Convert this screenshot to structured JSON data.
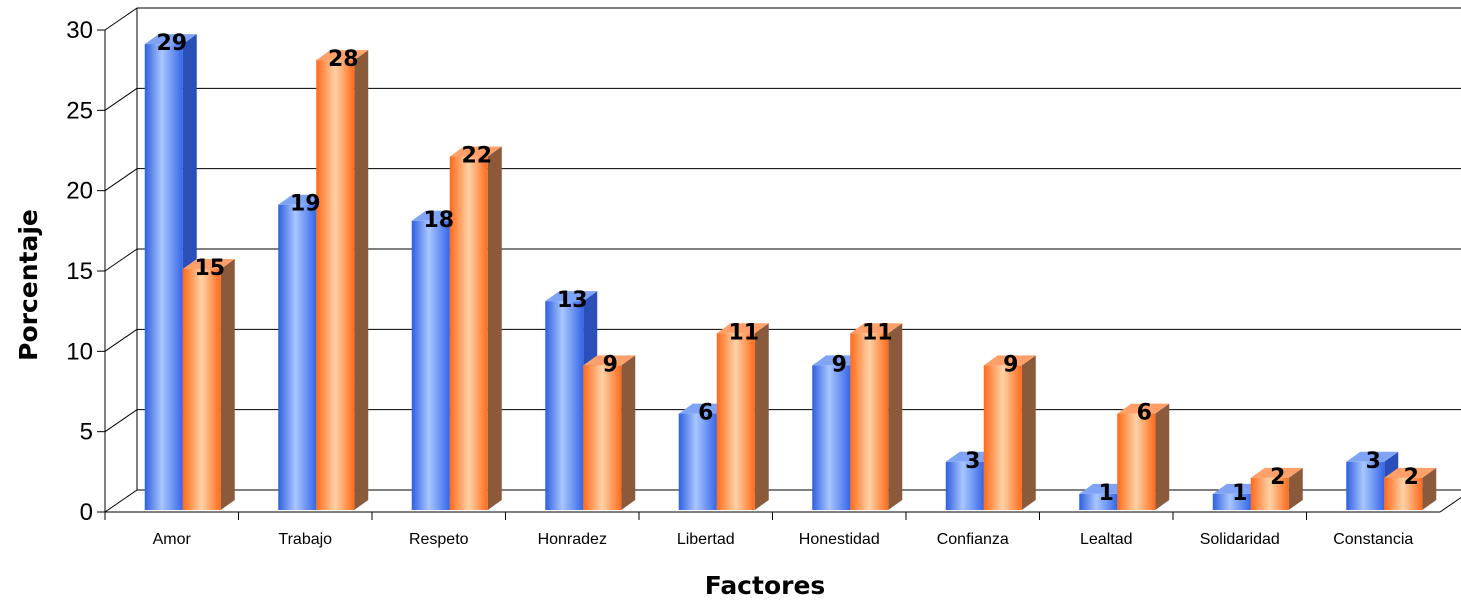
{
  "chart_data": {
    "type": "bar",
    "title": "",
    "xlabel": "Factores",
    "ylabel": "Porcentaje",
    "ylim": [
      0,
      30
    ],
    "yticks": [
      0,
      5,
      10,
      15,
      20,
      25,
      30
    ],
    "grid": true,
    "legend": "none",
    "three_d": true,
    "categories": [
      "Amor",
      "Trabajo",
      "Respeto",
      "Honradez",
      "Libertad",
      "Honestidad",
      "Confianza",
      "Lealtad",
      "Solidaridad",
      "Constancia"
    ],
    "series": [
      {
        "color": "#4a7df0",
        "values": [
          29,
          19,
          18,
          13,
          6,
          9,
          3,
          1,
          1,
          3
        ]
      },
      {
        "color": "#ff7a33",
        "values": [
          15,
          28,
          22,
          9,
          11,
          11,
          9,
          6,
          2,
          2
        ]
      }
    ]
  }
}
